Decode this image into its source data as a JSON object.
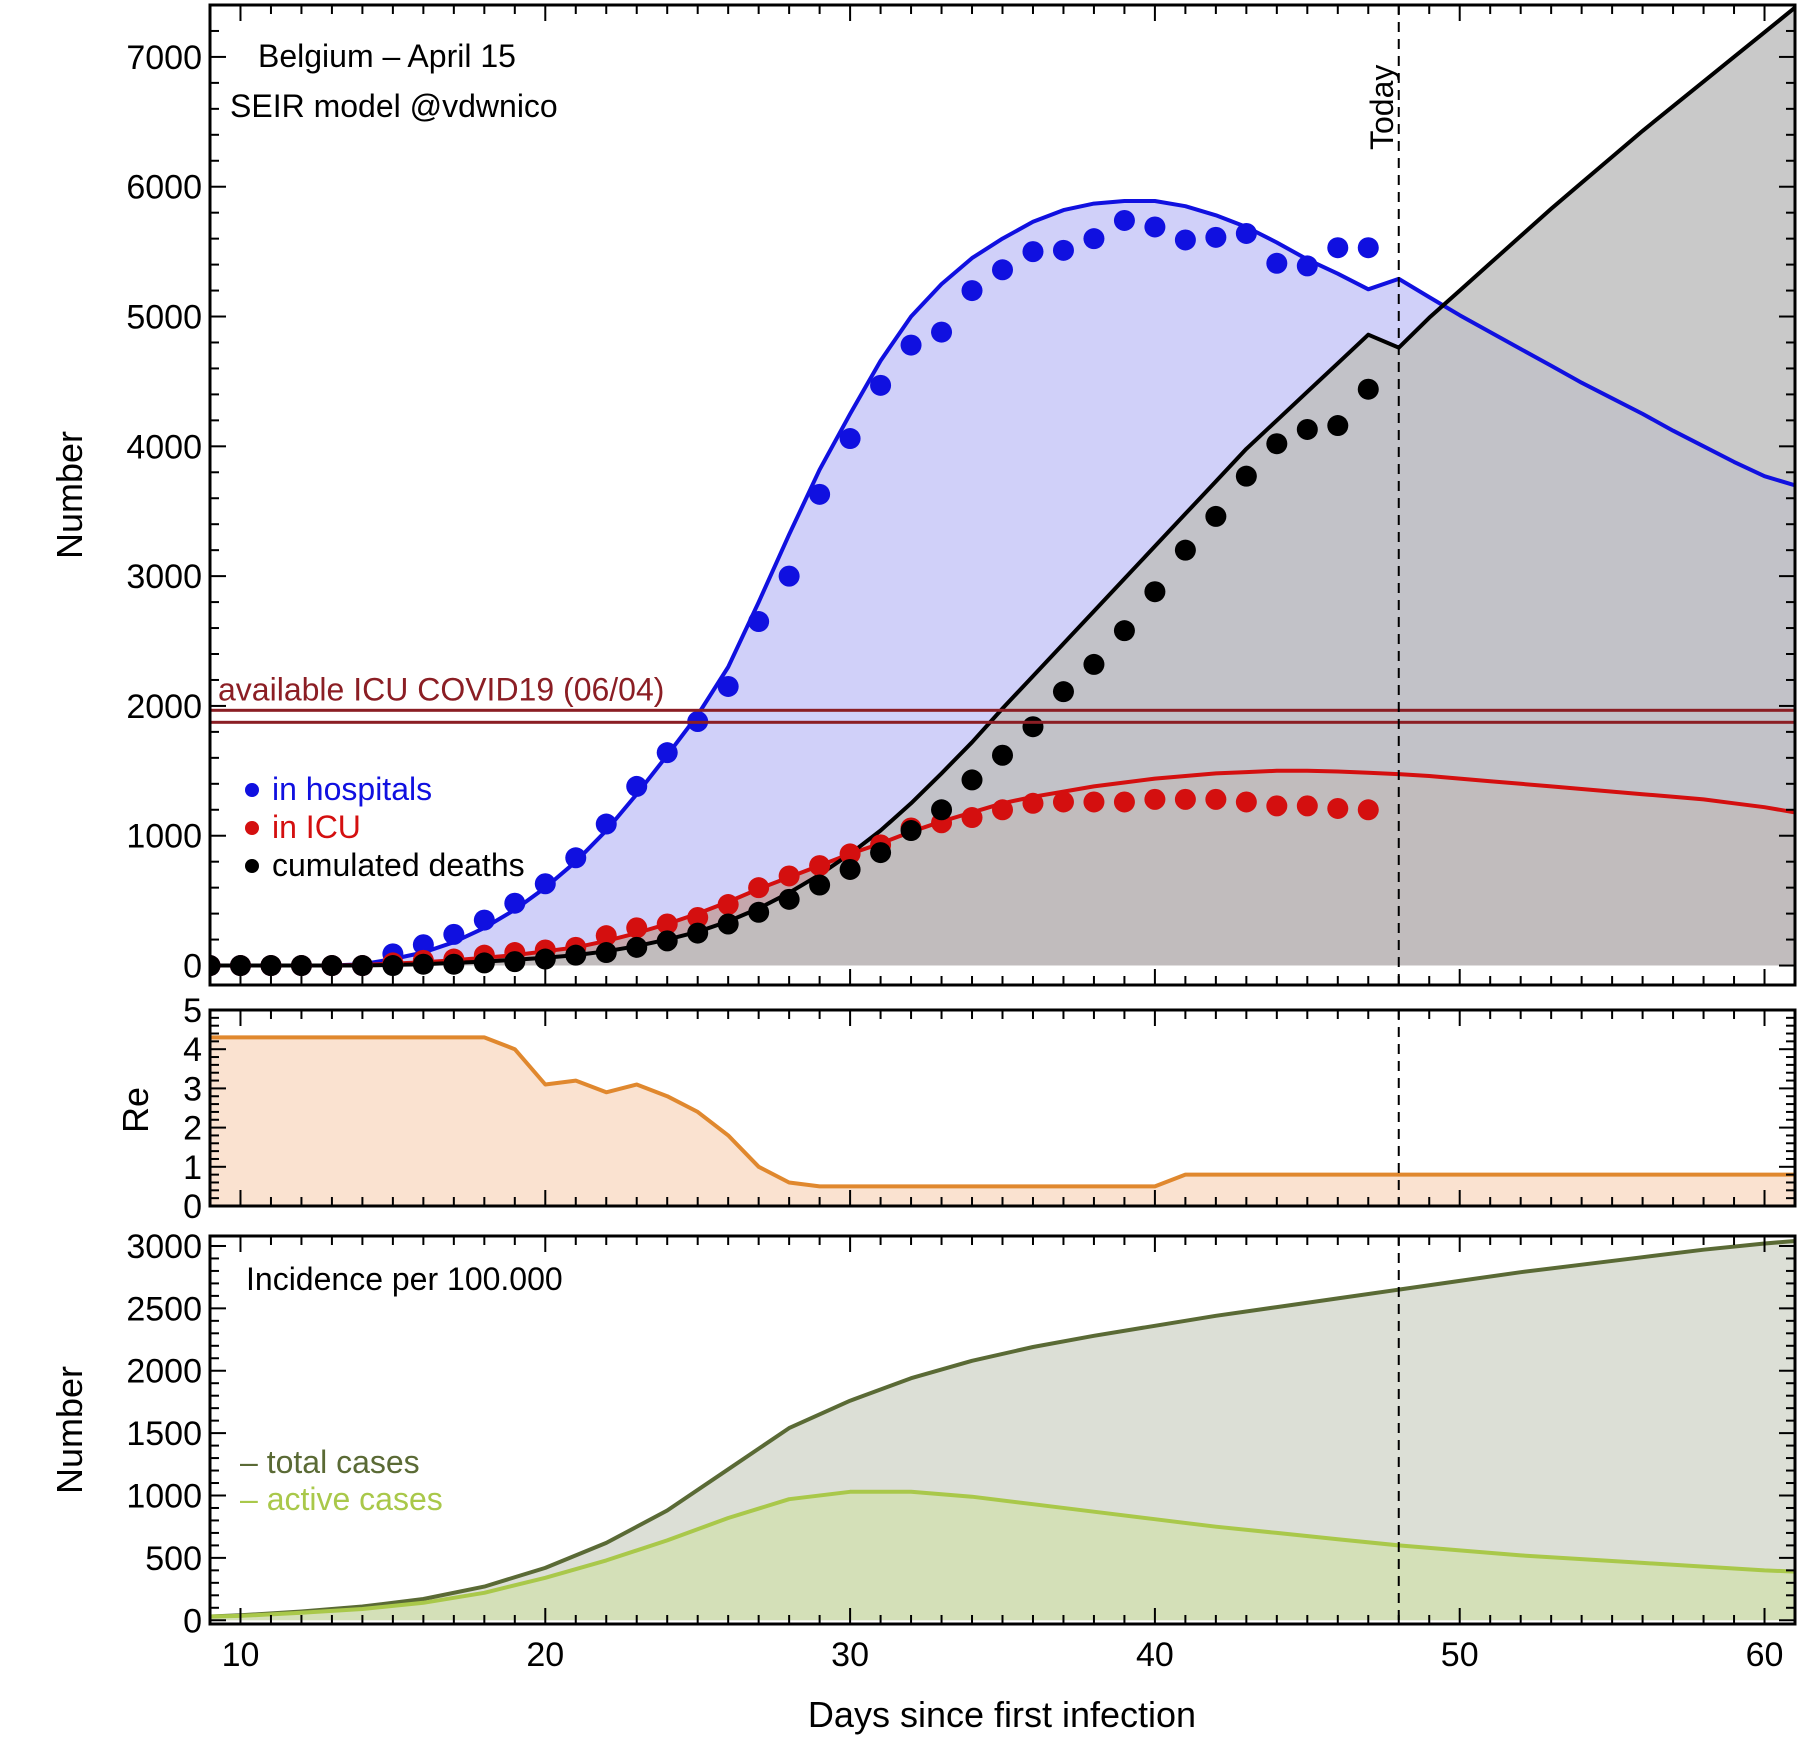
{
  "chart_data": [
    {
      "panel": "top",
      "type": "line",
      "title": "Belgium – April 15",
      "subtitle": "SEIR model @vdwnico",
      "xlabel": "",
      "ylabel": "Number",
      "xlim": [
        9,
        61
      ],
      "ylim": [
        -150,
        7400
      ],
      "x_ticks": [
        10,
        20,
        30,
        40,
        50,
        60
      ],
      "y_ticks": [
        0,
        1000,
        2000,
        3000,
        4000,
        5000,
        6000,
        7000
      ],
      "today_x": 48,
      "today_label": "Today",
      "icu_capacity": {
        "value": 1920,
        "label": "available ICU COVID19 (06/04)",
        "color": "#8b1e24"
      },
      "legend": [
        {
          "label": "in hospitals",
          "color": "#1010e0"
        },
        {
          "label": "in ICU",
          "color": "#d40f0f"
        },
        {
          "label": "cumulated deaths",
          "color": "#000000"
        }
      ],
      "series_points": [
        {
          "name": "in hospitals",
          "color": "#1010e0",
          "x": [
            9,
            10,
            11,
            12,
            13,
            14,
            15,
            16,
            17,
            18,
            19,
            20,
            21,
            22,
            23,
            24,
            25,
            26,
            27,
            28,
            29,
            30,
            31,
            32,
            33,
            34,
            35,
            36,
            37,
            38,
            39,
            40,
            41,
            42,
            43,
            44,
            45,
            46,
            47
          ],
          "y": [
            0,
            0,
            0,
            0,
            0,
            0,
            90,
            160,
            240,
            350,
            480,
            630,
            830,
            1090,
            1380,
            1640,
            1880,
            2150,
            2650,
            3000,
            3630,
            4060,
            4470,
            4780,
            4880,
            5200,
            5360,
            5500,
            5510,
            5600,
            5740,
            5690,
            5590,
            5610,
            5640,
            5410,
            5390,
            5530,
            5530
          ]
        },
        {
          "name": "in ICU",
          "color": "#d40f0f",
          "x": [
            9,
            10,
            11,
            12,
            13,
            14,
            15,
            16,
            17,
            18,
            19,
            20,
            21,
            22,
            23,
            24,
            25,
            26,
            27,
            28,
            29,
            30,
            31,
            32,
            33,
            34,
            35,
            36,
            37,
            38,
            39,
            40,
            41,
            42,
            43,
            44,
            45,
            46,
            47
          ],
          "y": [
            0,
            0,
            0,
            0,
            0,
            0,
            20,
            40,
            50,
            80,
            100,
            120,
            140,
            230,
            290,
            320,
            370,
            470,
            600,
            690,
            770,
            860,
            930,
            1060,
            1100,
            1140,
            1200,
            1250,
            1260,
            1260,
            1260,
            1280,
            1280,
            1280,
            1260,
            1230,
            1230,
            1210,
            1200
          ]
        },
        {
          "name": "cumulated deaths",
          "color": "#000000",
          "x": [
            9,
            10,
            11,
            12,
            13,
            14,
            15,
            16,
            17,
            18,
            19,
            20,
            21,
            22,
            23,
            24,
            25,
            26,
            27,
            28,
            29,
            30,
            31,
            32,
            33,
            34,
            35,
            36,
            37,
            38,
            39,
            40,
            41,
            42,
            43,
            44,
            45,
            46,
            47
          ],
          "y": [
            0,
            0,
            0,
            0,
            0,
            0,
            0,
            10,
            10,
            20,
            30,
            50,
            80,
            100,
            140,
            190,
            250,
            320,
            410,
            510,
            620,
            740,
            870,
            1040,
            1200,
            1430,
            1620,
            1840,
            2110,
            2320,
            2580,
            2880,
            3200,
            3460,
            3770,
            4020,
            4130,
            4160,
            4440
          ]
        }
      ],
      "series_model": [
        {
          "name": "in hospitals model",
          "color": "#1010e0",
          "fill": "#c8c8f8",
          "x": [
            9,
            10,
            11,
            12,
            13,
            14,
            15,
            16,
            17,
            18,
            19,
            20,
            21,
            22,
            23,
            24,
            25,
            26,
            27,
            28,
            29,
            30,
            31,
            32,
            33,
            34,
            35,
            36,
            37,
            38,
            39,
            40,
            41,
            42,
            43,
            44,
            45,
            46,
            47,
            48,
            49,
            50,
            51,
            52,
            53,
            54,
            55,
            56,
            57,
            58,
            59,
            60,
            61
          ],
          "y": [
            0,
            0,
            0,
            0,
            0,
            10,
            50,
            100,
            180,
            290,
            430,
            600,
            800,
            1040,
            1320,
            1620,
            1930,
            2300,
            2800,
            3320,
            3820,
            4250,
            4660,
            5000,
            5250,
            5450,
            5600,
            5730,
            5820,
            5870,
            5890,
            5890,
            5850,
            5780,
            5690,
            5570,
            5440,
            5330,
            5210,
            5290,
            5150,
            5010,
            4880,
            4750,
            4620,
            4490,
            4370,
            4250,
            4120,
            4000,
            3880,
            3770,
            3700
          ]
        },
        {
          "name": "in ICU model",
          "color": "#d40f0f",
          "fill": "#c4a0a0",
          "x": [
            9,
            10,
            11,
            12,
            13,
            14,
            15,
            16,
            17,
            18,
            19,
            20,
            21,
            22,
            23,
            24,
            25,
            26,
            27,
            28,
            29,
            30,
            31,
            32,
            33,
            34,
            35,
            36,
            37,
            38,
            39,
            40,
            41,
            42,
            43,
            44,
            45,
            46,
            47,
            48,
            49,
            50,
            51,
            52,
            53,
            54,
            55,
            56,
            57,
            58,
            59,
            60,
            61
          ],
          "y": [
            0,
            0,
            0,
            0,
            0,
            5,
            15,
            25,
            40,
            60,
            80,
            110,
            140,
            190,
            250,
            320,
            400,
            490,
            590,
            680,
            770,
            860,
            940,
            1030,
            1110,
            1180,
            1250,
            1300,
            1340,
            1380,
            1410,
            1440,
            1460,
            1480,
            1490,
            1500,
            1500,
            1495,
            1485,
            1475,
            1460,
            1440,
            1420,
            1400,
            1380,
            1360,
            1340,
            1320,
            1300,
            1280,
            1250,
            1220,
            1180
          ]
        },
        {
          "name": "cumulated deaths model",
          "color": "#000000",
          "fill": "#c0c0c0",
          "x": [
            9,
            10,
            11,
            12,
            13,
            14,
            15,
            16,
            17,
            18,
            19,
            20,
            21,
            22,
            23,
            24,
            25,
            26,
            27,
            28,
            29,
            30,
            31,
            32,
            33,
            34,
            35,
            36,
            37,
            38,
            39,
            40,
            41,
            42,
            43,
            44,
            45,
            46,
            47,
            48,
            49,
            50,
            51,
            52,
            53,
            54,
            55,
            56,
            57,
            58,
            59,
            60,
            61
          ],
          "y": [
            0,
            0,
            0,
            0,
            0,
            0,
            5,
            10,
            20,
            30,
            45,
            60,
            80,
            110,
            150,
            200,
            260,
            340,
            440,
            560,
            700,
            860,
            1040,
            1250,
            1480,
            1720,
            1980,
            2230,
            2480,
            2730,
            2980,
            3230,
            3480,
            3730,
            3980,
            4200,
            4420,
            4640,
            4860,
            4760,
            4990,
            5200,
            5410,
            5620,
            5830,
            6030,
            6230,
            6430,
            6620,
            6810,
            7000,
            7190,
            7380
          ]
        }
      ]
    },
    {
      "panel": "middle",
      "type": "area",
      "xlabel": "",
      "ylabel": "Re",
      "xlim": [
        9,
        61
      ],
      "ylim": [
        0,
        5
      ],
      "y_ticks": [
        0,
        1,
        2,
        3,
        4,
        5
      ],
      "series": [
        {
          "name": "Re",
          "color": "#e0882e",
          "fill": "#fae2d0",
          "x": [
            9,
            18,
            19,
            20,
            21,
            22,
            23,
            24,
            25,
            26,
            27,
            28,
            29,
            30,
            40,
            41,
            61
          ],
          "y": [
            4.3,
            4.3,
            4.0,
            3.1,
            3.2,
            2.9,
            3.1,
            2.8,
            2.4,
            1.8,
            1.0,
            0.6,
            0.5,
            0.5,
            0.5,
            0.8,
            0.8
          ]
        }
      ]
    },
    {
      "panel": "bottom",
      "type": "area",
      "title": "Incidence per 100.000",
      "xlabel": "Days since first infection",
      "ylabel": "Number",
      "xlim": [
        9,
        61
      ],
      "ylim": [
        -30,
        3080
      ],
      "x_ticks": [
        10,
        20,
        30,
        40,
        50,
        60
      ],
      "y_ticks": [
        0,
        500,
        1000,
        1500,
        2000,
        2500,
        3000
      ],
      "legend": [
        {
          "label": "– total cases",
          "color": "#5a6a35"
        },
        {
          "label": "– active cases",
          "color": "#a9c84a"
        }
      ],
      "series": [
        {
          "name": "total cases",
          "color": "#5a6a35",
          "fill": "#dcdfd6",
          "x": [
            9,
            10,
            12,
            14,
            16,
            18,
            20,
            22,
            24,
            26,
            28,
            30,
            32,
            34,
            36,
            38,
            40,
            42,
            44,
            46,
            48,
            50,
            52,
            54,
            56,
            58,
            60,
            61
          ],
          "y": [
            30,
            40,
            70,
            110,
            170,
            270,
            420,
            620,
            880,
            1210,
            1540,
            1760,
            1940,
            2080,
            2190,
            2280,
            2360,
            2440,
            2510,
            2580,
            2650,
            2720,
            2790,
            2850,
            2910,
            2970,
            3020,
            3040
          ]
        },
        {
          "name": "active cases",
          "color": "#a9c84a",
          "fill": "#d4e0b8",
          "x": [
            9,
            10,
            12,
            14,
            16,
            18,
            20,
            22,
            24,
            26,
            28,
            30,
            32,
            34,
            36,
            38,
            40,
            42,
            44,
            46,
            48,
            50,
            52,
            54,
            56,
            58,
            60,
            61
          ],
          "y": [
            30,
            35,
            60,
            90,
            140,
            220,
            340,
            480,
            640,
            820,
            970,
            1030,
            1030,
            990,
            930,
            870,
            810,
            750,
            700,
            650,
            600,
            560,
            520,
            490,
            460,
            430,
            400,
            390
          ]
        }
      ]
    }
  ]
}
